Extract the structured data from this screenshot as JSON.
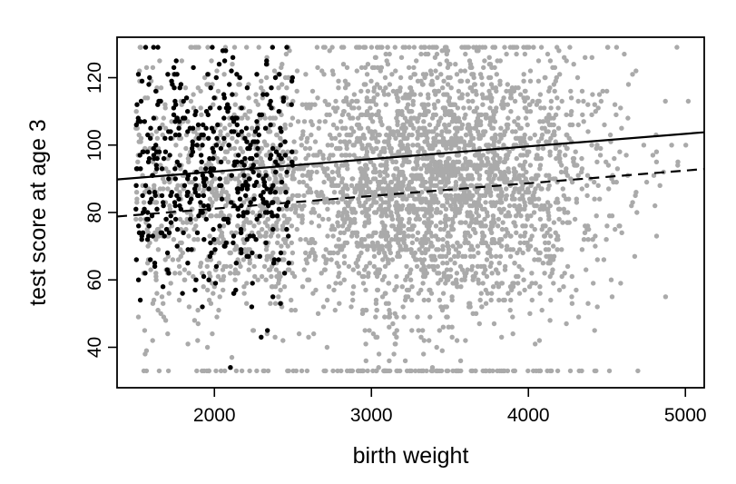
{
  "chart_data": {
    "type": "scatter",
    "title": "",
    "xlabel": "birth weight",
    "ylabel": "test score at age 3",
    "xlim": [
      1380,
      5120
    ],
    "ylim": [
      28,
      132
    ],
    "xticks": [
      2000,
      3000,
      4000,
      5000
    ],
    "yticks": [
      40,
      60,
      80,
      100,
      120
    ],
    "grid": false,
    "legend": "none",
    "colors": {
      "low_birth_weight": "#000000",
      "normal_birth_weight": "#aaaaaa",
      "axes": "#000000"
    },
    "series": [
      {
        "kind": "points",
        "summary": {
          "n_approx": 3600,
          "x_range": [
            1500,
            5100
          ],
          "y_range": [
            33,
            129
          ],
          "x_center": 3400,
          "x_sd": 550,
          "y_center": 88,
          "y_sd": 20
        }
      },
      {
        "kind": "points",
        "summary": {
          "n_approx": 450,
          "x_range": [
            1500,
            2500
          ],
          "y_range": [
            33,
            129
          ],
          "y_center": 91,
          "y_sd": 18
        }
      },
      {
        "kind": "line",
        "style": "solid",
        "x": [
          1380,
          5120
        ],
        "y": [
          89.8,
          103.8
        ]
      },
      {
        "kind": "line",
        "style": "dashed",
        "x": [
          1380,
          5120
        ],
        "y": [
          78.8,
          92.9
        ]
      }
    ]
  }
}
